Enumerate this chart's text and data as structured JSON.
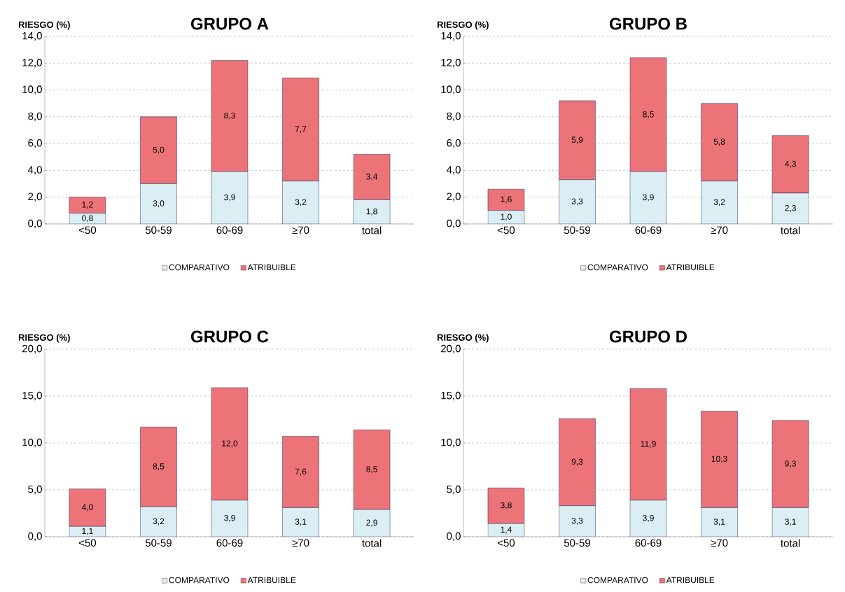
{
  "chart_data": [
    {
      "type": "bar",
      "title": "GRUPO A",
      "ylabel": "RIESGO (%)",
      "categories": [
        "<50",
        "50-59",
        "60-69",
        "≥70",
        "total"
      ],
      "stacked": true,
      "grid": "y",
      "legend": "bottom",
      "ylim": [
        0,
        14
      ],
      "yticks": [
        {
          "value": 0,
          "label": "0,0"
        },
        {
          "value": 2,
          "label": "2,0"
        },
        {
          "value": 4,
          "label": "4,0"
        },
        {
          "value": 6,
          "label": "6,0"
        },
        {
          "value": 8,
          "label": "8,0"
        },
        {
          "value": 10,
          "label": "10,0"
        },
        {
          "value": 12,
          "label": "12,0"
        },
        {
          "value": 14,
          "label": "14,0"
        }
      ],
      "series": [
        {
          "name": "COMPARATIVO",
          "color": "#dbeef4",
          "values": [
            0.8,
            3.0,
            3.9,
            3.2,
            1.8
          ],
          "value_labels": [
            "0,8",
            "3,0",
            "3,9",
            "3,2",
            "1,8"
          ]
        },
        {
          "name": "ATRIBUIBLE",
          "color": "#ec7479",
          "values": [
            1.2,
            5.0,
            8.3,
            7.7,
            3.4
          ],
          "value_labels": [
            "1,2",
            "5,0",
            "8,3",
            "7,7",
            "3,4"
          ]
        }
      ]
    },
    {
      "type": "bar",
      "title": "GRUPO B",
      "ylabel": "RIESGO (%)",
      "categories": [
        "<50",
        "50-59",
        "60-69",
        "≥70",
        "total"
      ],
      "stacked": true,
      "grid": "y",
      "legend": "bottom",
      "ylim": [
        0,
        14
      ],
      "yticks": [
        {
          "value": 0,
          "label": "0,0"
        },
        {
          "value": 2,
          "label": "2,0"
        },
        {
          "value": 4,
          "label": "4,0"
        },
        {
          "value": 6,
          "label": "6,0"
        },
        {
          "value": 8,
          "label": "8,0"
        },
        {
          "value": 10,
          "label": "10,0"
        },
        {
          "value": 12,
          "label": "12,0"
        },
        {
          "value": 14,
          "label": "14,0"
        }
      ],
      "series": [
        {
          "name": "COMPARATIVO",
          "color": "#dbeef4",
          "values": [
            1.0,
            3.3,
            3.9,
            3.2,
            2.3
          ],
          "value_labels": [
            "1,0",
            "3,3",
            "3,9",
            "3,2",
            "2,3"
          ]
        },
        {
          "name": "ATRIBUIBLE",
          "color": "#ec7479",
          "values": [
            1.6,
            5.9,
            8.5,
            5.8,
            4.3
          ],
          "value_labels": [
            "1,6",
            "5,9",
            "8,5",
            "5,8",
            "4,3"
          ]
        }
      ]
    },
    {
      "type": "bar",
      "title": "GRUPO C",
      "ylabel": "RIESGO (%)",
      "categories": [
        "<50",
        "50-59",
        "60-69",
        "≥70",
        "total"
      ],
      "stacked": true,
      "grid": "y",
      "legend": "bottom",
      "ylim": [
        0,
        20
      ],
      "yticks": [
        {
          "value": 0,
          "label": "0,0"
        },
        {
          "value": 5,
          "label": "5,0"
        },
        {
          "value": 10,
          "label": "10,0"
        },
        {
          "value": 15,
          "label": "15,0"
        },
        {
          "value": 20,
          "label": "20,0"
        }
      ],
      "series": [
        {
          "name": "COMPARATIVO",
          "color": "#dbeef4",
          "values": [
            1.1,
            3.2,
            3.9,
            3.1,
            2.9
          ],
          "value_labels": [
            "1,1",
            "3,2",
            "3,9",
            "3,1",
            "2,9"
          ]
        },
        {
          "name": "ATRIBUIBLE",
          "color": "#ec7479",
          "values": [
            4.0,
            8.5,
            12.0,
            7.6,
            8.5
          ],
          "value_labels": [
            "4,0",
            "8,5",
            "12,0",
            "7,6",
            "8,5"
          ]
        }
      ]
    },
    {
      "type": "bar",
      "title": "GRUPO D",
      "ylabel": "RIESGO (%)",
      "categories": [
        "<50",
        "50-59",
        "60-69",
        "≥70",
        "total"
      ],
      "stacked": true,
      "grid": "y",
      "legend": "bottom",
      "ylim": [
        0,
        20
      ],
      "yticks": [
        {
          "value": 0,
          "label": "0,0"
        },
        {
          "value": 5,
          "label": "5,0"
        },
        {
          "value": 10,
          "label": "10,0"
        },
        {
          "value": 15,
          "label": "15,0"
        },
        {
          "value": 20,
          "label": "20,0"
        }
      ],
      "series": [
        {
          "name": "COMPARATIVO",
          "color": "#dbeef4",
          "values": [
            1.4,
            3.3,
            3.9,
            3.1,
            3.1
          ],
          "value_labels": [
            "1,4",
            "3,3",
            "3,9",
            "3,1",
            "3,1"
          ]
        },
        {
          "name": "ATRIBUIBLE",
          "color": "#ec7479",
          "values": [
            3.8,
            9.3,
            11.9,
            10.3,
            9.3
          ],
          "value_labels": [
            "3,8",
            "9,3",
            "11,9",
            "10,3",
            "9,3"
          ]
        }
      ]
    }
  ]
}
